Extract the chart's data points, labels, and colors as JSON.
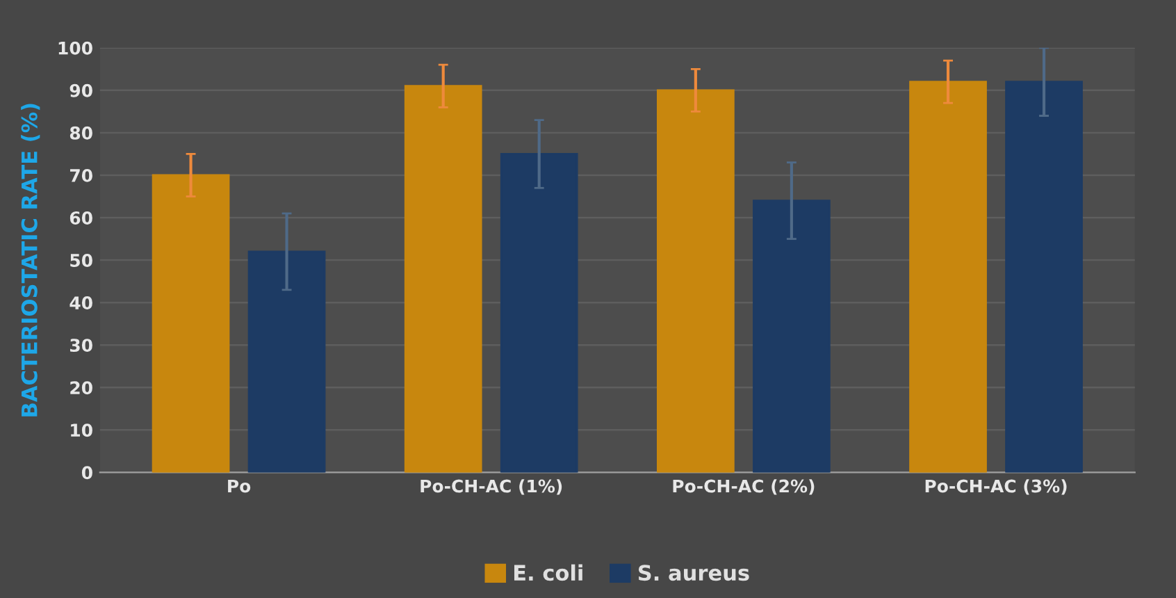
{
  "chart_data": {
    "type": "bar",
    "ylabel": "BACTERIOSTATIC RATE (%)",
    "categories": [
      "Po",
      "Po-CH-AC (1%)",
      "Po-CH-AC (2%)",
      "Po-CH-AC (3%)"
    ],
    "series": [
      {
        "name": "E. coli",
        "color": "#c8870e",
        "values": [
          70,
          91,
          90,
          92
        ],
        "errors": [
          5,
          5,
          5,
          5
        ]
      },
      {
        "name": "S. aureus",
        "color": "#1d3b64",
        "values": [
          52,
          75,
          64,
          92
        ],
        "errors": [
          9,
          8,
          9,
          8
        ]
      }
    ],
    "ylim": [
      0,
      100
    ],
    "yticks": [
      0,
      10,
      20,
      30,
      40,
      50,
      60,
      70,
      80,
      90,
      100
    ],
    "grid": "y",
    "legend": "bottom"
  }
}
